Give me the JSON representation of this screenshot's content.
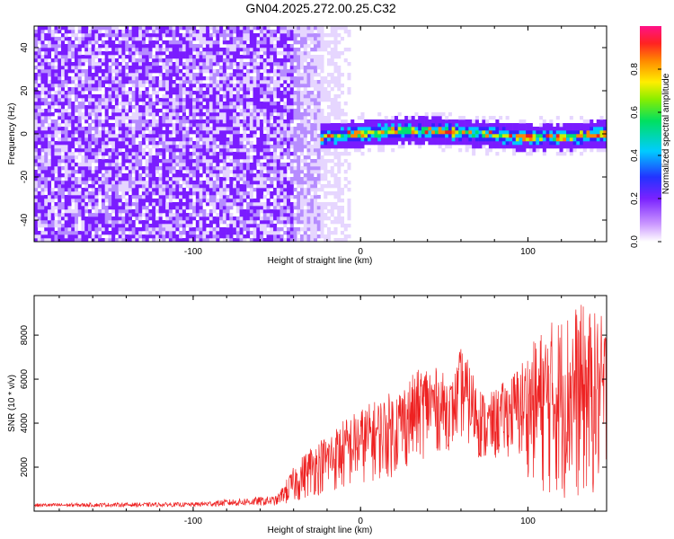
{
  "chart_data": [
    {
      "type": "heatmap",
      "title": "GN04.2025.272.00.25.C32",
      "xlabel": "Height of straight line (km)",
      "ylabel": "Frequency (Hz)",
      "xlim": [
        -195,
        147
      ],
      "ylim": [
        -50,
        50
      ],
      "x_ticks": [
        -100,
        0,
        100
      ],
      "y_ticks": [
        -40,
        -20,
        0,
        20,
        40
      ],
      "colorbar": {
        "label": "Normalized spectral amplitude",
        "range": [
          0,
          1
        ],
        "ticks": [
          "0.0",
          "0.2",
          "0.4",
          "0.6",
          "0.8"
        ]
      },
      "features": {
        "noise_region_x": [
          -195,
          5
        ],
        "signal_band_x": [
          -25,
          147
        ],
        "signal_band_center_hz": 0,
        "signal_band_halfwidth_hz": 4
      },
      "grid": false
    },
    {
      "type": "line",
      "xlabel": "Height of straight line (km)",
      "ylabel": "SNR (10 * v/v)",
      "xlim": [
        -195,
        147
      ],
      "ylim": [
        0,
        9800
      ],
      "x_ticks": [
        -100,
        0,
        100
      ],
      "y_ticks": [
        2000,
        4000,
        6000,
        8000
      ],
      "series": [
        {
          "color": "#ee2222",
          "envelope_x": [
            -195,
            -150,
            -100,
            -70,
            -50,
            -40,
            -30,
            -20,
            -10,
            0,
            20,
            40,
            55,
            60,
            75,
            90,
            110,
            130,
            147
          ],
          "envelope_low": [
            150,
            150,
            150,
            150,
            150,
            300,
            600,
            800,
            800,
            1200,
            1500,
            2500,
            2800,
            3200,
            2000,
            2500,
            600,
            300,
            500
          ],
          "envelope_high": [
            350,
            380,
            400,
            600,
            700,
            2000,
            3000,
            3500,
            4200,
            4700,
            5500,
            6800,
            6000,
            7500,
            5200,
            6200,
            8500,
            9500,
            8800
          ]
        }
      ],
      "grid": false
    }
  ]
}
